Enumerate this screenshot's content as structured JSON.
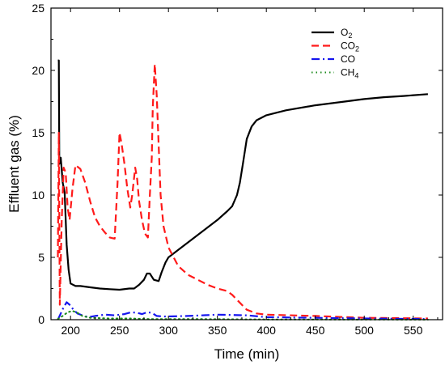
{
  "chart_data": {
    "type": "line",
    "xlabel": "Time (min)",
    "ylabel": "Effluent gas (%)",
    "xlim": [
      180,
      580
    ],
    "ylim": [
      0,
      25
    ],
    "xticks": [
      200,
      250,
      300,
      350,
      400,
      450,
      500,
      550
    ],
    "yticks": [
      0,
      5,
      10,
      15,
      20,
      25
    ],
    "grid": false,
    "legend_position": "top-right",
    "series": [
      {
        "name": "O2",
        "label_main": "O",
        "label_sub": "2",
        "color": "#000000",
        "dash": "none",
        "stroke_width": 2.2,
        "points": [
          [
            187,
            20.8
          ],
          [
            188,
            20.8
          ],
          [
            188.5,
            12.5
          ],
          [
            190,
            13
          ],
          [
            192,
            11
          ],
          [
            194,
            10.2
          ],
          [
            196,
            6
          ],
          [
            198,
            4
          ],
          [
            200,
            2.9
          ],
          [
            205,
            2.7
          ],
          [
            210,
            2.7
          ],
          [
            220,
            2.6
          ],
          [
            230,
            2.5
          ],
          [
            240,
            2.45
          ],
          [
            250,
            2.4
          ],
          [
            260,
            2.5
          ],
          [
            265,
            2.5
          ],
          [
            270,
            2.8
          ],
          [
            275,
            3.2
          ],
          [
            278,
            3.7
          ],
          [
            281,
            3.7
          ],
          [
            285,
            3.2
          ],
          [
            290,
            3.1
          ],
          [
            293,
            3.8
          ],
          [
            297,
            4.6
          ],
          [
            300,
            5.0
          ],
          [
            310,
            5.6
          ],
          [
            320,
            6.2
          ],
          [
            330,
            6.8
          ],
          [
            340,
            7.4
          ],
          [
            350,
            8.0
          ],
          [
            360,
            8.7
          ],
          [
            365,
            9.1
          ],
          [
            370,
            10.0
          ],
          [
            373,
            11.0
          ],
          [
            376,
            12.5
          ],
          [
            380,
            14.5
          ],
          [
            385,
            15.5
          ],
          [
            390,
            16.0
          ],
          [
            400,
            16.4
          ],
          [
            420,
            16.8
          ],
          [
            450,
            17.2
          ],
          [
            480,
            17.5
          ],
          [
            500,
            17.7
          ],
          [
            520,
            17.85
          ],
          [
            540,
            17.95
          ],
          [
            565,
            18.1
          ]
        ]
      },
      {
        "name": "CO2",
        "label_main": "CO",
        "label_sub": "2",
        "color": "#ff1a1a",
        "dash": "9,5",
        "stroke_width": 2.2,
        "points": [
          [
            187,
            5
          ],
          [
            188,
            15
          ],
          [
            189,
            1.2
          ],
          [
            191,
            8
          ],
          [
            193,
            12.2
          ],
          [
            195,
            11.8
          ],
          [
            197,
            9
          ],
          [
            199,
            8
          ],
          [
            202,
            10.5
          ],
          [
            205,
            12.4
          ],
          [
            210,
            12.1
          ],
          [
            215,
            11
          ],
          [
            220,
            9.5
          ],
          [
            225,
            8.2
          ],
          [
            230,
            7.5
          ],
          [
            235,
            7.0
          ],
          [
            240,
            6.6
          ],
          [
            245,
            6.5
          ],
          [
            248,
            11
          ],
          [
            250,
            15
          ],
          [
            252,
            14.2
          ],
          [
            255,
            12.5
          ],
          [
            258,
            10.5
          ],
          [
            261,
            9.0
          ],
          [
            263,
            10
          ],
          [
            266,
            12.2
          ],
          [
            268,
            11.3
          ],
          [
            270,
            9.5
          ],
          [
            273,
            8.0
          ],
          [
            276,
            6.9
          ],
          [
            279,
            6.6
          ],
          [
            281,
            10
          ],
          [
            283,
            13
          ],
          [
            284,
            17
          ],
          [
            286,
            20.5
          ],
          [
            288,
            18
          ],
          [
            290,
            14
          ],
          [
            292,
            10
          ],
          [
            295,
            7.5
          ],
          [
            300,
            5.8
          ],
          [
            310,
            4.3
          ],
          [
            320,
            3.6
          ],
          [
            330,
            3.2
          ],
          [
            340,
            2.8
          ],
          [
            350,
            2.5
          ],
          [
            360,
            2.3
          ],
          [
            365,
            2.0
          ],
          [
            370,
            1.6
          ],
          [
            380,
            0.8
          ],
          [
            390,
            0.5
          ],
          [
            400,
            0.4
          ],
          [
            450,
            0.3
          ],
          [
            500,
            0.15
          ],
          [
            565,
            0.1
          ]
        ]
      },
      {
        "name": "CO",
        "label_main": "CO",
        "label_sub": "",
        "color": "#1515ee",
        "dash": "10,4,2,4",
        "stroke_width": 2.2,
        "points": [
          [
            187,
            0
          ],
          [
            190,
            0.5
          ],
          [
            193,
            1.0
          ],
          [
            196,
            1.4
          ],
          [
            199,
            1.2
          ],
          [
            203,
            0.8
          ],
          [
            207,
            0.5
          ],
          [
            212,
            0.35
          ],
          [
            218,
            0.2
          ],
          [
            225,
            0.3
          ],
          [
            235,
            0.4
          ],
          [
            245,
            0.35
          ],
          [
            255,
            0.45
          ],
          [
            262,
            0.6
          ],
          [
            268,
            0.55
          ],
          [
            273,
            0.45
          ],
          [
            278,
            0.6
          ],
          [
            283,
            0.55
          ],
          [
            288,
            0.3
          ],
          [
            295,
            0.25
          ],
          [
            320,
            0.3
          ],
          [
            350,
            0.4
          ],
          [
            380,
            0.35
          ],
          [
            400,
            0.2
          ],
          [
            450,
            0.15
          ],
          [
            500,
            0.1
          ],
          [
            565,
            0.05
          ]
        ]
      },
      {
        "name": "CH4",
        "label_main": "CH",
        "label_sub": "4",
        "color": "#1b8a1b",
        "dash": "1.5,4",
        "stroke_width": 2.0,
        "points": [
          [
            187,
            0.05
          ],
          [
            192,
            0.3
          ],
          [
            197,
            0.6
          ],
          [
            202,
            0.7
          ],
          [
            207,
            0.55
          ],
          [
            212,
            0.3
          ],
          [
            220,
            0.15
          ],
          [
            240,
            0.1
          ],
          [
            260,
            0.1
          ],
          [
            280,
            0.05
          ],
          [
            320,
            0.05
          ],
          [
            400,
            0.02
          ],
          [
            565,
            0.0
          ]
        ]
      }
    ]
  }
}
